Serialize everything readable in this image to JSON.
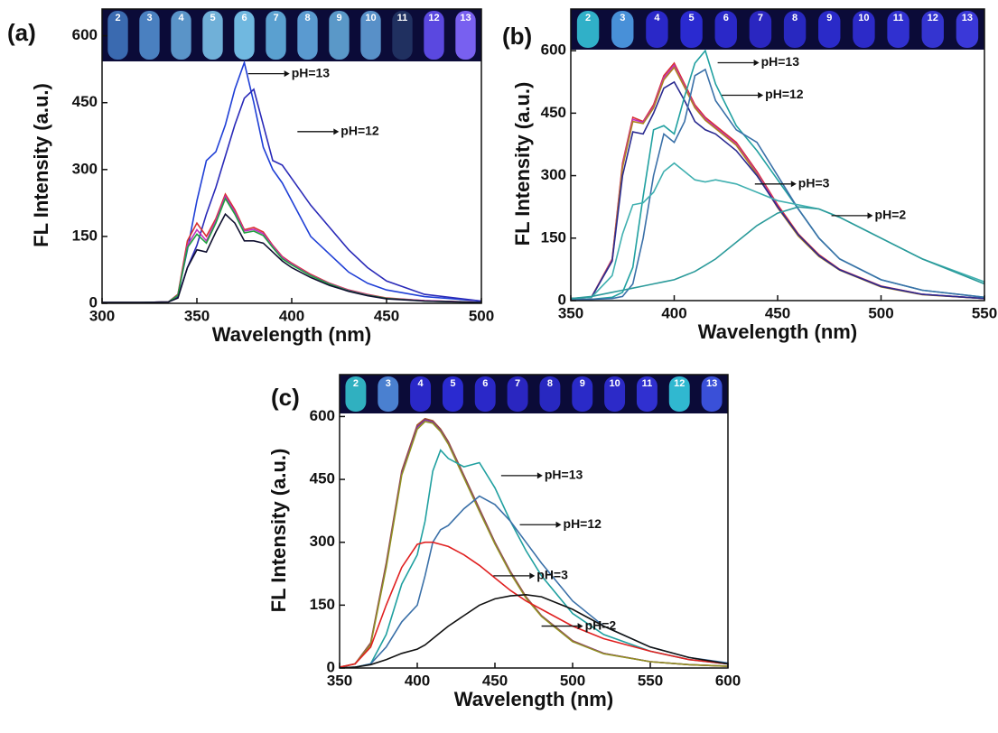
{
  "chart_data": [
    {
      "type": "line",
      "panel": "(a)",
      "xlabel": "Wavelength (nm)",
      "ylabel": "FL Intensity (a.u.)",
      "xlim": [
        300,
        500
      ],
      "xticks": [
        300,
        350,
        400,
        450,
        500
      ],
      "ylim": [
        0,
        660
      ],
      "yticks": [
        0,
        150,
        300,
        450,
        600
      ],
      "x": [
        300,
        320,
        335,
        340,
        345,
        350,
        355,
        360,
        365,
        370,
        375,
        380,
        385,
        390,
        395,
        400,
        410,
        420,
        430,
        440,
        450,
        470,
        500
      ],
      "series": [
        {
          "color": "#1f3fd6",
          "values": [
            2,
            2,
            3,
            20,
            120,
            230,
            320,
            340,
            400,
            480,
            540,
            450,
            350,
            300,
            270,
            230,
            150,
            110,
            70,
            45,
            30,
            15,
            5
          ]
        },
        {
          "color": "#2a2ab8",
          "values": [
            2,
            2,
            3,
            15,
            80,
            130,
            200,
            260,
            330,
            400,
            460,
            480,
            400,
            320,
            310,
            280,
            220,
            170,
            120,
            80,
            50,
            20,
            5
          ]
        },
        {
          "color": "#d93030",
          "values": [
            2,
            2,
            3,
            20,
            140,
            180,
            150,
            190,
            245,
            210,
            165,
            170,
            160,
            130,
            105,
            90,
            65,
            45,
            30,
            20,
            12,
            6,
            2
          ]
        },
        {
          "color": "#c030c0",
          "values": [
            2,
            2,
            3,
            18,
            130,
            165,
            140,
            185,
            240,
            205,
            162,
            166,
            156,
            128,
            103,
            88,
            63,
            44,
            29,
            19,
            11,
            6,
            2
          ]
        },
        {
          "color": "#20a040",
          "values": [
            2,
            2,
            3,
            18,
            125,
            155,
            135,
            180,
            235,
            200,
            158,
            162,
            152,
            125,
            100,
            86,
            62,
            43,
            28,
            18,
            11,
            5,
            2
          ]
        },
        {
          "color": "#101030",
          "values": [
            2,
            2,
            3,
            12,
            80,
            120,
            115,
            160,
            200,
            180,
            140,
            140,
            135,
            115,
            95,
            80,
            58,
            40,
            27,
            17,
            10,
            5,
            2
          ]
        }
      ],
      "annotations": [
        {
          "text": "pH=13",
          "x": 377,
          "y": 515
        },
        {
          "text": "pH=12",
          "x": 403,
          "y": 385
        }
      ],
      "tubes": [
        "2",
        "3",
        "4",
        "5",
        "6",
        "7",
        "8",
        "9",
        "10",
        "11",
        "12",
        "13"
      ],
      "tube_colors": [
        "#3a6ab0",
        "#4a80c0",
        "#5a94c8",
        "#70b0d8",
        "#70b8e0",
        "#5aa0d0",
        "#5a9ad0",
        "#5a98c8",
        "#5890c8",
        "#203060",
        "#5a48e0",
        "#7860f0"
      ]
    },
    {
      "type": "line",
      "panel": "(b)",
      "xlabel": "Wavelength (nm)",
      "ylabel": "FL Intensity (a.u.)",
      "xlim": [
        350,
        550
      ],
      "xticks": [
        350,
        400,
        450,
        500,
        550
      ],
      "ylim": [
        0,
        700
      ],
      "yticks": [
        0,
        150,
        300,
        450,
        600
      ],
      "x": [
        350,
        360,
        370,
        375,
        380,
        385,
        390,
        395,
        400,
        405,
        410,
        415,
        420,
        430,
        440,
        450,
        460,
        470,
        480,
        500,
        520,
        550
      ],
      "series": [
        {
          "color": "#d93030",
          "values": [
            5,
            8,
            100,
            330,
            440,
            430,
            470,
            540,
            570,
            520,
            470,
            440,
            420,
            380,
            310,
            230,
            160,
            110,
            75,
            35,
            15,
            5
          ]
        },
        {
          "color": "#c030c0",
          "values": [
            5,
            8,
            98,
            325,
            435,
            428,
            465,
            535,
            565,
            515,
            466,
            436,
            416,
            376,
            306,
            226,
            157,
            108,
            74,
            34,
            15,
            5
          ]
        },
        {
          "color": "#b08020",
          "values": [
            5,
            8,
            96,
            320,
            430,
            425,
            462,
            530,
            560,
            512,
            463,
            433,
            413,
            373,
            303,
            223,
            155,
            106,
            73,
            33,
            14,
            5
          ]
        },
        {
          "color": "#2a2a90",
          "values": [
            5,
            8,
            95,
            300,
            405,
            400,
            450,
            510,
            525,
            480,
            430,
            410,
            400,
            360,
            300,
            225,
            158,
            108,
            74,
            34,
            15,
            5
          ]
        },
        {
          "color": "#20a0a0",
          "values": [
            2,
            3,
            8,
            20,
            80,
            250,
            410,
            420,
            400,
            490,
            570,
            600,
            520,
            420,
            360,
            290,
            220,
            150,
            100,
            50,
            25,
            8
          ]
        },
        {
          "color": "#3a70a8",
          "values": [
            2,
            3,
            5,
            10,
            40,
            150,
            300,
            400,
            380,
            430,
            540,
            555,
            480,
            410,
            380,
            300,
            220,
            150,
            100,
            50,
            25,
            8
          ]
        },
        {
          "color": "#40b0b0",
          "values": [
            5,
            8,
            60,
            160,
            230,
            235,
            260,
            310,
            330,
            310,
            290,
            285,
            290,
            280,
            260,
            240,
            230,
            220,
            200,
            150,
            100,
            45
          ]
        },
        {
          "color": "#2a9a9a",
          "values": [
            5,
            10,
            20,
            25,
            30,
            35,
            40,
            45,
            50,
            60,
            70,
            85,
            100,
            140,
            180,
            210,
            225,
            220,
            200,
            150,
            100,
            40
          ]
        }
      ],
      "annotations": [
        {
          "text": "pH=13",
          "x": 421,
          "y": 571
        },
        {
          "text": "pH=12",
          "x": 423,
          "y": 493
        },
        {
          "text": "pH=3",
          "x": 439,
          "y": 280
        },
        {
          "text": "pH=2",
          "x": 476,
          "y": 204
        }
      ],
      "tubes": [
        "2",
        "3",
        "4",
        "5",
        "6",
        "7",
        "8",
        "9",
        "10",
        "11",
        "12",
        "13"
      ],
      "tube_colors": [
        "#30b0c8",
        "#4890d8",
        "#2a28c8",
        "#2a2ad0",
        "#2a28c8",
        "#2a26c0",
        "#2828c0",
        "#2a2ac8",
        "#2c2ac8",
        "#3030d0",
        "#3434d0",
        "#3a38d8"
      ]
    },
    {
      "type": "line",
      "panel": "(c)",
      "xlabel": "Wavelength (nm)",
      "ylabel": "FL Intensity (a.u.)",
      "xlim": [
        350,
        600
      ],
      "xticks": [
        350,
        400,
        450,
        500,
        550,
        600
      ],
      "ylim": [
        0,
        700
      ],
      "yticks": [
        0,
        150,
        300,
        450,
        600
      ],
      "x": [
        350,
        360,
        370,
        380,
        390,
        400,
        405,
        410,
        415,
        420,
        430,
        440,
        450,
        460,
        470,
        480,
        500,
        520,
        550,
        575,
        600
      ],
      "series": [
        {
          "color": "#a05020",
          "values": [
            2,
            10,
            60,
            250,
            470,
            580,
            595,
            590,
            570,
            540,
            460,
            380,
            300,
            230,
            170,
            125,
            65,
            35,
            15,
            8,
            4
          ]
        },
        {
          "color": "#8030a0",
          "values": [
            2,
            10,
            58,
            245,
            465,
            575,
            592,
            587,
            567,
            537,
            457,
            377,
            298,
            228,
            168,
            124,
            64,
            35,
            15,
            8,
            4
          ]
        },
        {
          "color": "#909020",
          "values": [
            2,
            10,
            56,
            240,
            460,
            570,
            588,
            584,
            564,
            534,
            454,
            374,
            296,
            226,
            167,
            123,
            63,
            34,
            15,
            8,
            4
          ]
        },
        {
          "color": "#20a0a0",
          "values": [
            0,
            2,
            10,
            80,
            200,
            270,
            350,
            470,
            520,
            500,
            480,
            490,
            430,
            350,
            280,
            220,
            130,
            80,
            40,
            20,
            10
          ]
        },
        {
          "color": "#3a70a8",
          "values": [
            0,
            2,
            10,
            50,
            110,
            150,
            220,
            300,
            330,
            340,
            380,
            410,
            390,
            350,
            300,
            250,
            160,
            100,
            50,
            25,
            12
          ]
        },
        {
          "color": "#e02020",
          "values": [
            2,
            10,
            50,
            150,
            240,
            295,
            300,
            300,
            295,
            290,
            270,
            245,
            215,
            185,
            160,
            140,
            100,
            70,
            40,
            20,
            10
          ]
        },
        {
          "color": "#111111",
          "values": [
            0,
            2,
            8,
            20,
            35,
            45,
            55,
            70,
            85,
            100,
            125,
            150,
            165,
            172,
            175,
            170,
            140,
            100,
            50,
            25,
            10
          ]
        }
      ],
      "annotations": [
        {
          "text": "pH=13",
          "x": 454,
          "y": 459
        },
        {
          "text": "pH=12",
          "x": 466,
          "y": 342
        },
        {
          "text": "pH=3",
          "x": 449,
          "y": 220
        },
        {
          "text": "pH=2",
          "x": 480,
          "y": 100
        }
      ],
      "tubes": [
        "2",
        "3",
        "4",
        "5",
        "6",
        "7",
        "8",
        "9",
        "10",
        "11",
        "12",
        "13"
      ],
      "tube_colors": [
        "#30b0c0",
        "#4a80d0",
        "#2a28c8",
        "#2a2ad0",
        "#2a28c8",
        "#2a26c0",
        "#2828c0",
        "#2a2ac8",
        "#2c2ac8",
        "#3030d0",
        "#30b8d0",
        "#3a50d8"
      ]
    }
  ]
}
